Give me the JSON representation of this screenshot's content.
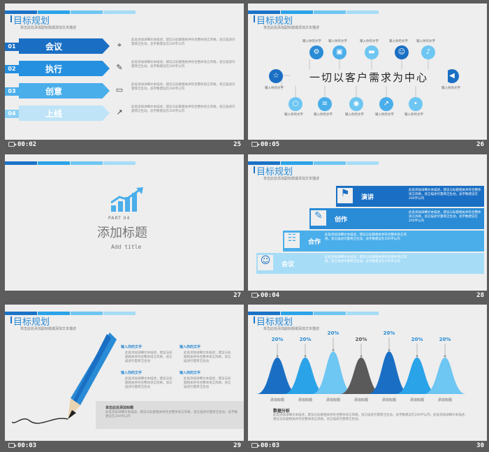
{
  "slides": [
    {
      "number": "25",
      "duration": "00:02",
      "title": "目标规划",
      "subtitle": "单击此处添加副标题或添加文本描述",
      "rows": [
        {
          "num": "01",
          "label": "会议",
          "icon": "pin-icon",
          "text": "此处添加详细文本描述，建议与标题相关并符合整体语言风格，语言描述尽量简洁生动，总字数建议在200字以内"
        },
        {
          "num": "02",
          "label": "执行",
          "icon": "pencil-icon",
          "text": "此处添加详细文本描述，建议与标题相关并符合整体语言风格，语言描述尽量简洁生动，总字数建议在200字以内"
        },
        {
          "num": "03",
          "label": "创意",
          "icon": "monitor-icon",
          "text": "此处添加详细文本描述，建议与标题相关并符合整体语言风格，语言描述尽量简洁生动，总字数建议在200字以内"
        },
        {
          "num": "04",
          "label": "上线",
          "icon": "rocket-icon",
          "text": "此处添加详细文本描述，建议与标题相关并符合整体语言风格，语言描述尽量简洁生动，总字数建议在200字以内"
        }
      ]
    },
    {
      "number": "26",
      "duration": "00:05",
      "title": "目标规划",
      "subtitle": "单击此处添加副标题或添加文本描述",
      "center_text": "一切以客户需求为中心",
      "circle_label": "输入你的文字"
    },
    {
      "number": "27",
      "duration": "",
      "part": "PART  04",
      "heading": "添加标题",
      "sub": "Add title"
    },
    {
      "number": "28",
      "duration": "00:04",
      "title": "目标规划",
      "subtitle": "单击此处添加副标题或添加文本描述",
      "steps": [
        {
          "label": "演讲",
          "text": "此处添加详细文本描述，建议与标题相关并符合整体语言风格，语言描述尽量简洁生动，总字数建议在200字以内"
        },
        {
          "label": "创作",
          "text": "此处添加详细文本描述，建议与标题相关并符合整体语言风格，语言描述尽量简洁生动，总字数建议在200字以内"
        },
        {
          "label": "合作",
          "text": "此处添加详细文本描述，建议与标题相关并符合整体语言风格，语言描述尽量简洁生动，总字数建议在200字以内"
        },
        {
          "label": "会议",
          "text": "此处添加详细文本描述，建议与标题相关并符合整体语言风格，语言描述尽量简洁生动，总字数建议在200字以内"
        }
      ]
    },
    {
      "number": "29",
      "duration": "00:03",
      "title": "目标规划",
      "subtitle": "单击此处添加副标题或添加文本描述",
      "items": [
        {
          "head": "输入你的文字",
          "text": "此处添加详细文本描述，建议与标题相关并符合整体语言风格，语言描述尽量简洁生动"
        },
        {
          "head": "输入你的文字",
          "text": "此处添加详细文本描述，建议与标题相关并符合整体语言风格，语言描述尽量简洁生动"
        },
        {
          "head": "输入你的文字",
          "text": "此处添加详细文本描述，建议与标题相关并符合整体语言风格，语言描述尽量简洁生动"
        },
        {
          "head": "输入你的文字",
          "text": "此处添加详细文本描述，建议与标题相关并符合整体语言风格，语言描述尽量简洁生动"
        }
      ],
      "footer_head": "单击此处添加标题",
      "footer_text": "此处添加详细文本描述，建议与标题相关并符合整体语言风格，语言描述尽量简洁生动，总字数建议在200字以内"
    },
    {
      "number": "30",
      "duration": "00:03",
      "title": "目标规划",
      "subtitle": "单击此处添加副标题或添加文本描述",
      "analysis_head": "数据分析",
      "analysis_text": "此处添加详细文本描述，建议与标题相关并符合整体语言风格，语言描述尽量简洁生动，总字数建议在200字以内。此处添加详细文本描述，建议与标题相关并符合整体语言风格，语言描述尽量简洁生动。",
      "colors": [
        "#1a6fc4",
        "#2aa3e8",
        "#6ec6f2",
        "#5a5a5a",
        "#1a6fc4",
        "#2aa3e8",
        "#6ec6f2"
      ]
    }
  ],
  "chart_data": {
    "type": "area",
    "categories": [
      "添加标题",
      "添加标题",
      "添加标题",
      "添加标题",
      "添加标题",
      "添加标题",
      "添加标题"
    ],
    "values": [
      20,
      20,
      20,
      20,
      20,
      20,
      20
    ],
    "value_labels": [
      "20%",
      "20%",
      "20%",
      "20%",
      "20%",
      "20%",
      "20%"
    ],
    "title": "",
    "xlabel": "",
    "ylabel": ""
  }
}
